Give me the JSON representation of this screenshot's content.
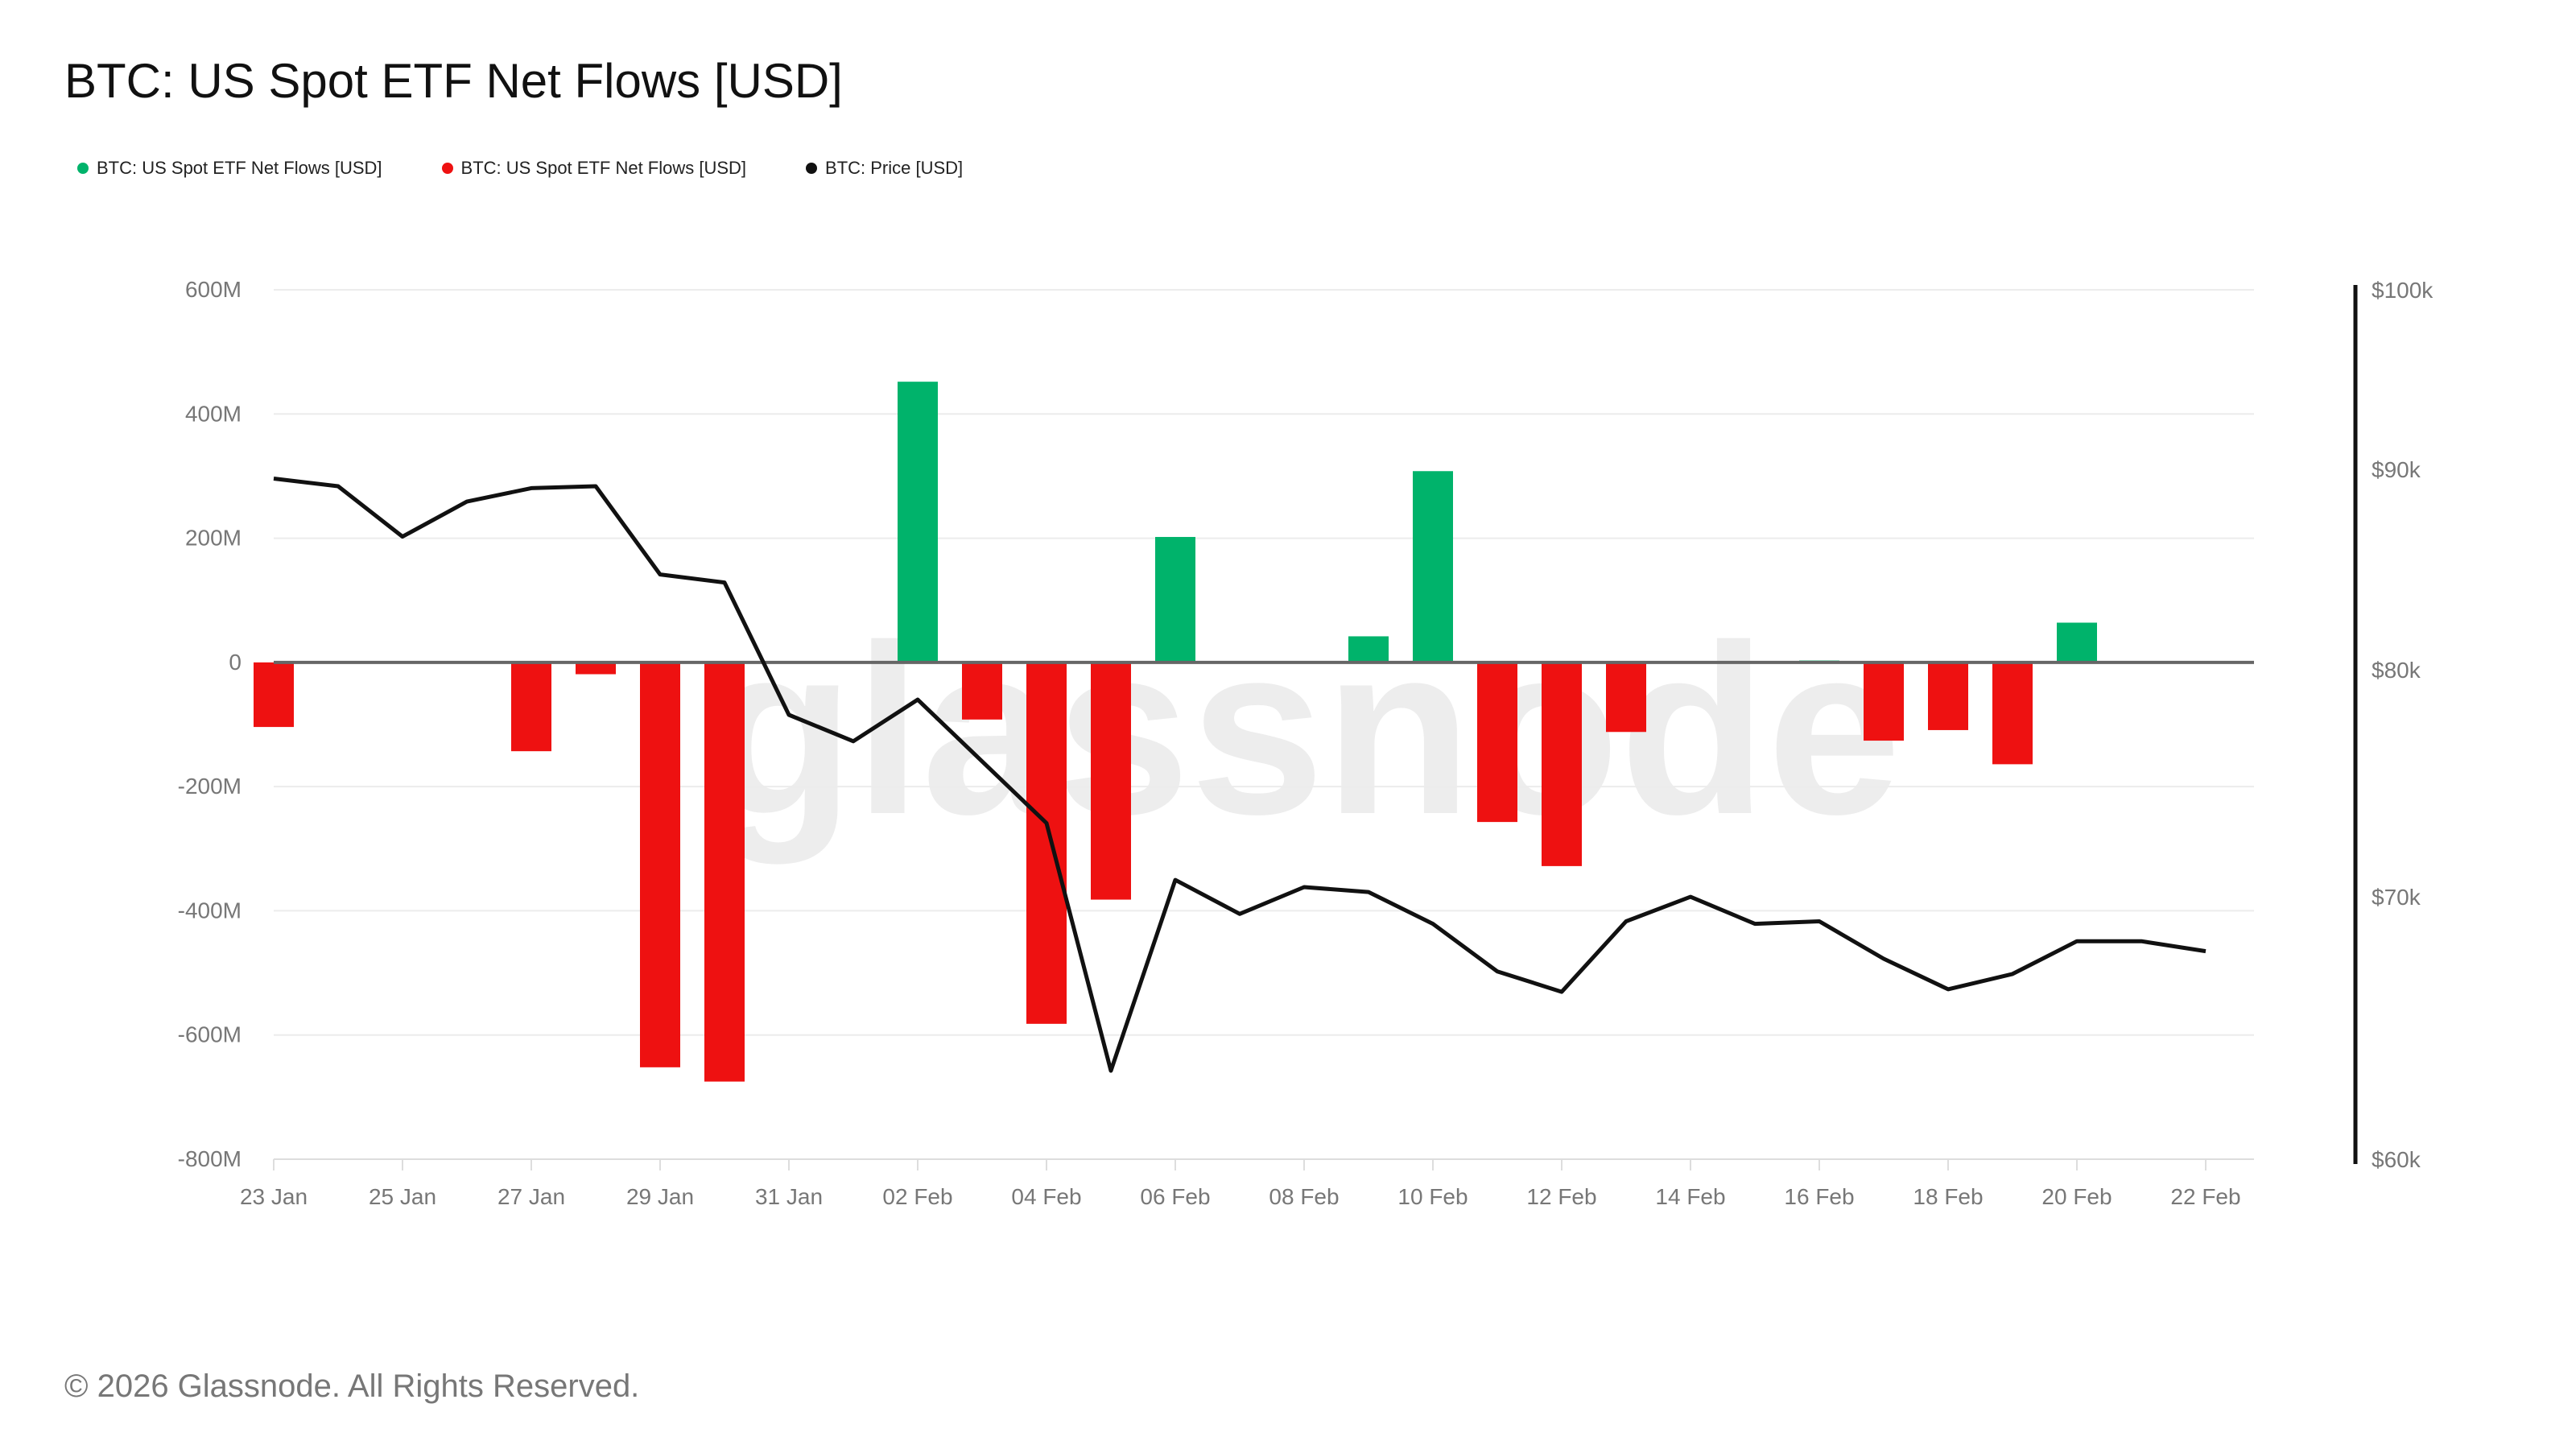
{
  "title": "BTC: US Spot ETF Net Flows [USD]",
  "legend": [
    {
      "label": "BTC: US Spot ETF Net Flows [USD]",
      "color": "#00b36b"
    },
    {
      "label": "BTC: US Spot ETF Net Flows [USD]",
      "color": "#ee1111"
    },
    {
      "label": "BTC: Price [USD]",
      "color": "#111111"
    }
  ],
  "watermark": "glassnode",
  "footer": "© 2026 Glassnode. All Rights Reserved.",
  "chart_data": {
    "type": "bar",
    "x": [
      "23 Jan",
      "24 Jan",
      "25 Jan",
      "26 Jan",
      "27 Jan",
      "28 Jan",
      "29 Jan",
      "30 Jan",
      "31 Jan",
      "01 Feb",
      "02 Feb",
      "03 Feb",
      "04 Feb",
      "05 Feb",
      "06 Feb",
      "07 Feb",
      "08 Feb",
      "09 Feb",
      "10 Feb",
      "11 Feb",
      "12 Feb",
      "13 Feb",
      "14 Feb",
      "15 Feb",
      "16 Feb",
      "17 Feb",
      "18 Feb",
      "19 Feb",
      "20 Feb",
      "21 Feb",
      "22 Feb"
    ],
    "x_tick_labels": [
      "23 Jan",
      "25 Jan",
      "27 Jan",
      "29 Jan",
      "31 Jan",
      "02 Feb",
      "04 Feb",
      "06 Feb",
      "08 Feb",
      "10 Feb",
      "12 Feb",
      "14 Feb",
      "16 Feb",
      "18 Feb",
      "20 Feb",
      "22 Feb"
    ],
    "series": [
      {
        "name": "BTC: US Spot ETF Net Flows [USD]",
        "axis": "left",
        "color_positive": "#00b36b",
        "color_negative": "#ee1111",
        "values": [
          -104,
          0,
          0,
          0,
          -143,
          -19,
          -652,
          -675,
          0,
          0,
          452,
          -92,
          -582,
          -382,
          202,
          0,
          0,
          42,
          308,
          -257,
          -328,
          -112,
          0,
          0,
          3,
          -126,
          -109,
          -164,
          64,
          0,
          0
        ]
      },
      {
        "name": "BTC: Price [USD]",
        "axis": "right",
        "color": "#111111",
        "values": [
          89500,
          89100,
          86500,
          88300,
          89000,
          89100,
          84600,
          84200,
          77900,
          76700,
          78600,
          75800,
          73100,
          63200,
          70700,
          69300,
          70400,
          70200,
          68900,
          67000,
          66200,
          69000,
          70000,
          68900,
          69000,
          67500,
          66300,
          66900,
          68200,
          68200,
          67800
        ]
      }
    ],
    "y_left": {
      "min": -800,
      "max": 600,
      "ticks": [
        600,
        400,
        200,
        0,
        -200,
        -400,
        -600,
        -800
      ],
      "tick_labels": [
        "600M",
        "400M",
        "200M",
        "0",
        "-200M",
        "-400M",
        "-600M",
        "-800M"
      ]
    },
    "y_right": {
      "scale": "log",
      "min": 60000,
      "max": 100000,
      "ticks": [
        100000,
        90000,
        80000,
        70000,
        60000
      ],
      "tick_labels": [
        "$100k",
        "$90k",
        "$80k",
        "$70k",
        "$60k"
      ]
    },
    "grid": true,
    "legend_position": "top-left"
  }
}
